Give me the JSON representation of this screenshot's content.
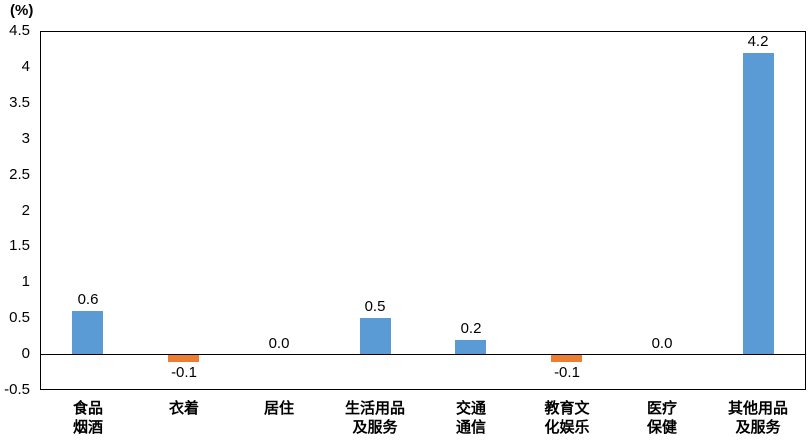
{
  "chart_data": {
    "type": "bar",
    "title": "",
    "unit_label": "(%)",
    "categories": [
      "食品烟酒",
      "衣着",
      "居住",
      "生活用品及服务",
      "交通通信",
      "教育文化娱乐",
      "医疗保健",
      "其他用品及服务"
    ],
    "category_lines": [
      [
        "食品",
        "烟酒"
      ],
      [
        "衣着"
      ],
      [
        "居住"
      ],
      [
        "生活用品",
        "及服务"
      ],
      [
        "交通",
        "通信"
      ],
      [
        "教育文",
        "化娱乐"
      ],
      [
        "医疗",
        "保健"
      ],
      [
        "其他用品",
        "及服务"
      ]
    ],
    "values": [
      0.6,
      -0.1,
      0.0,
      0.5,
      0.2,
      -0.1,
      0.0,
      4.2
    ],
    "data_labels": [
      "0.6",
      "-0.1",
      "0.0",
      "0.5",
      "0.2",
      "-0.1",
      "0.0",
      "4.2"
    ],
    "xlabel": "",
    "ylabel": "(%)",
    "ylim": [
      -0.5,
      4.5
    ],
    "yticks": [
      4.5,
      4,
      3.5,
      3,
      2.5,
      2,
      1.5,
      1,
      0.5,
      0,
      -0.5
    ],
    "ytick_labels": [
      "4.5",
      "4",
      "3.5",
      "3",
      "2.5",
      "2",
      "1.5",
      "1",
      "0.5",
      "0",
      "-0.5"
    ],
    "grid": false,
    "legend": "none",
    "bar_color_positive": "#5B9BD5",
    "bar_color_negative": "#ED7D31",
    "axis_color": "#000000",
    "background": "#FFFFFF"
  }
}
